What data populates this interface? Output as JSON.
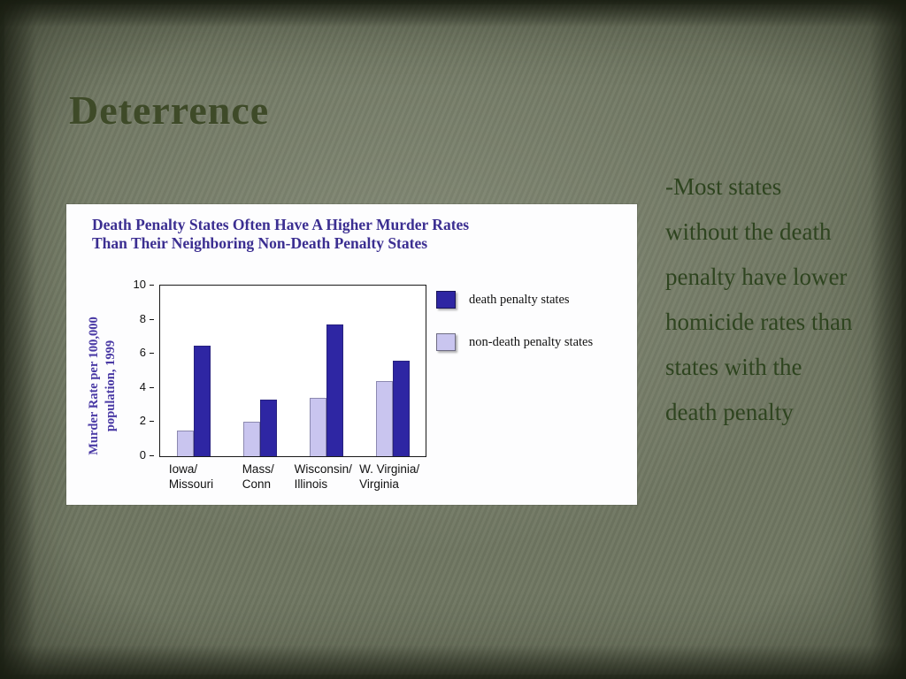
{
  "slide": {
    "title": "Deterrence",
    "body_text": "-Most states without the death penalty have lower homicide rates than states with the death penalty"
  },
  "colors": {
    "background": "#6f7661",
    "title_text": "#3e4a28",
    "body_text": "#2e441f",
    "chart_title": "#3b2e91",
    "y_axis_title": "#4a3aa5",
    "axis_text": "#111111",
    "death_penalty_bar": "#2e26a3",
    "non_death_penalty_bar": "#c9c5ef",
    "chart_background": "#fdfdfe"
  },
  "chart_data": {
    "type": "bar",
    "title": "Death Penalty States Often Have A Higher Murder Rates Than Their Neighboring Non-Death Penalty States",
    "title_lines": [
      "Death Penalty States Often Have A Higher Murder Rates",
      "Than Their Neighboring Non-Death Penalty States"
    ],
    "ylabel": "Murder Rate per 100,000 population, 1999",
    "ylabel_lines": [
      "Murder Rate per 100,000",
      "population, 1999"
    ],
    "xlabel": "",
    "ylim": [
      0,
      10
    ],
    "yticks": [
      0,
      2,
      4,
      6,
      8,
      10
    ],
    "grid": false,
    "legend_position": "right",
    "categories": [
      [
        "Iowa/",
        "Missouri"
      ],
      [
        "Mass/",
        "Conn"
      ],
      [
        "Wisconsin/",
        "Illinois"
      ],
      [
        "W. Virginia/",
        "Virginia"
      ]
    ],
    "series": [
      {
        "name": "non-death penalty states",
        "color": "#c9c5ef",
        "values": [
          1.5,
          2.0,
          3.4,
          4.4
        ]
      },
      {
        "name": "death penalty states",
        "color": "#2e26a3",
        "values": [
          6.5,
          3.3,
          7.7,
          5.6
        ]
      }
    ],
    "legend": [
      {
        "label": "death penalty states",
        "color": "#2e26a3"
      },
      {
        "label": "non-death penalty states",
        "color": "#c9c5ef"
      }
    ]
  }
}
